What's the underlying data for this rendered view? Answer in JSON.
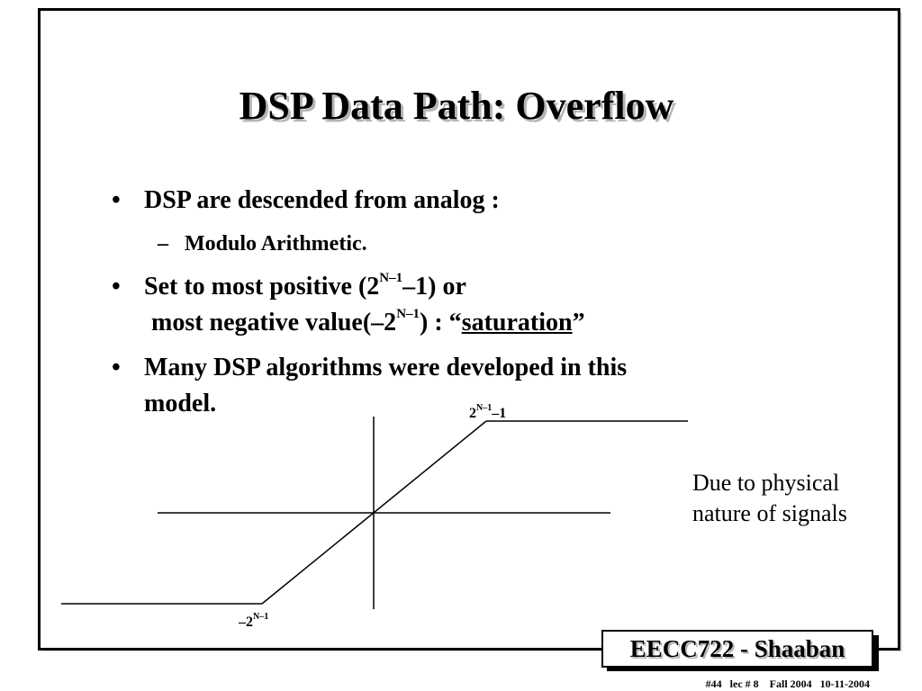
{
  "slide": {
    "title": "DSP Data Path:  Overflow",
    "bullets": [
      {
        "text": "DSP are descended from analog :",
        "sub": [
          "Modulo Arithmetic."
        ]
      },
      {
        "line1_pre": "Set to most positive (2",
        "line1_sup": "N–1",
        "line1_post": "–1) or",
        "line2_pre": "most negative value(–2",
        "line2_sup": "N–1",
        "line2_mid": ") : “",
        "line2_underlined": "saturation",
        "line2_post": "”"
      },
      {
        "line1": "Many DSP algorithms were developed in this",
        "line2": "model."
      }
    ],
    "bullet_mark": "•",
    "sub_mark": "–",
    "note": {
      "line1": "Due to physical",
      "line2": "nature of signals"
    }
  },
  "graph": {
    "type": "saturation-transfer-function",
    "positive_label_base": "2",
    "positive_label_sup": "N–1",
    "positive_label_post": "–1",
    "negative_label_base": "–2",
    "negative_label_sup": "N–1"
  },
  "badge": {
    "text": "EECC722 - Shaaban"
  },
  "footer": {
    "text": "#44   lec # 8    Fall 2004   10-11-2004"
  }
}
